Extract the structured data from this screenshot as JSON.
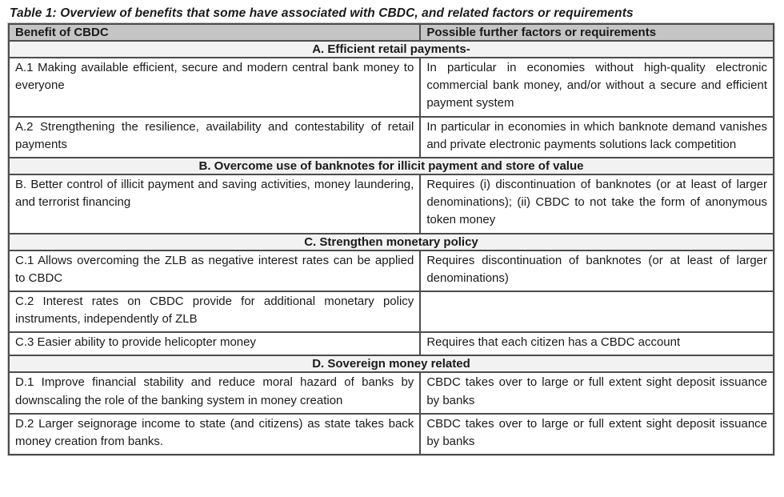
{
  "title": "Table 1: Overview of benefits that some have associated with CBDC, and related factors or requirements",
  "table": {
    "columns": [
      "Benefit of CBDC",
      "Possible further factors or requirements"
    ],
    "sections": [
      {
        "header": "A. Efficient retail payments-",
        "rows": [
          {
            "benefit": "A.1 Making available efficient, secure and modern central bank money to everyone",
            "factors": "In particular in economies without high-quality electronic commercial bank money, and/or without a secure and efficient payment system"
          },
          {
            "benefit": "A.2 Strengthening the resilience, availability and contestability of retail payments",
            "factors": "In particular in economies in which banknote demand vanishes and private electronic payments solutions lack competition"
          }
        ]
      },
      {
        "header": "B. Overcome use of banknotes for illicit payment and store of value",
        "rows": [
          {
            "benefit": "B. Better control of illicit payment and saving activities, money laundering, and terrorist financing",
            "factors": "Requires (i) discontinuation of banknotes (or at least of larger denominations); (ii) CBDC to not take the form of anonymous token money"
          }
        ]
      },
      {
        "header": "C. Strengthen monetary policy",
        "rows": [
          {
            "benefit": "C.1 Allows overcoming the ZLB as negative interest rates can be applied to CBDC",
            "factors": "Requires discontinuation of banknotes (or at least of larger denominations)"
          },
          {
            "benefit": "C.2 Interest rates on CBDC provide for additional monetary policy instruments, independently of ZLB",
            "factors": ""
          },
          {
            "benefit": "C.3 Easier ability to provide helicopter money",
            "factors": "Requires that each citizen has a CBDC account"
          }
        ]
      },
      {
        "header": "D. Sovereign money related",
        "rows": [
          {
            "benefit": "D.1 Improve financial stability and reduce moral hazard of banks by downscaling the role of the banking system in money creation",
            "factors": "CBDC takes over to large or full extent sight deposit issuance by banks"
          },
          {
            "benefit": "D.2 Larger seignorage income to state (and citizens) as state takes back money creation from banks.",
            "factors": "CBDC takes over to large or full extent sight deposit issuance by banks"
          }
        ]
      }
    ]
  },
  "colors": {
    "header_bg": "#c5c5c5",
    "section_bg": "#f2f2f2",
    "border": "#4c4c4c",
    "text": "#1a1a1a"
  }
}
